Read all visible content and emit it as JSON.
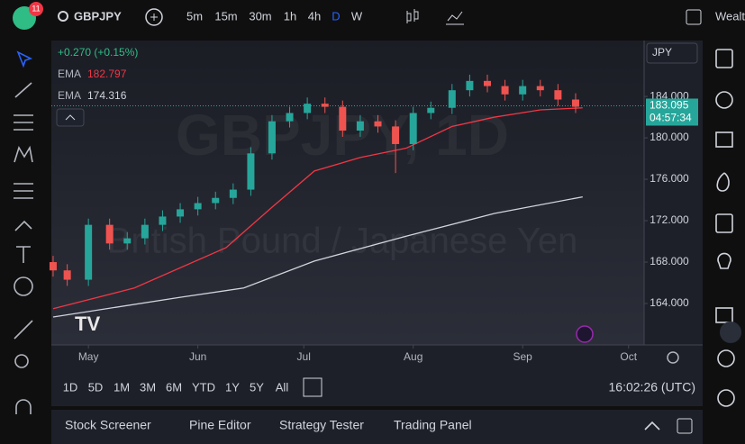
{
  "toolbar": {
    "badge": "11",
    "symbol": "GBPJPY",
    "intervals": [
      "5m",
      "15m",
      "30m",
      "1h",
      "4h",
      "D",
      "W"
    ],
    "account": "Wealt"
  },
  "legend": {
    "change": "+0.270 (+0.15%)",
    "ema_label_1": "EMA",
    "ema_value_1": "182.797",
    "ema_label_2": "EMA",
    "ema_value_2": "174.316"
  },
  "currency": "JPY",
  "watermark": {
    "symbol": "GBPJPY, 1D",
    "name": "British Pound / Japanese Yen"
  },
  "chart_data": {
    "type": "candlestick",
    "x": [
      -10,
      -6,
      0,
      6,
      11,
      16,
      21,
      26,
      31,
      36,
      41,
      46,
      52,
      57,
      62,
      67,
      72,
      77,
      82,
      87,
      92,
      97,
      103,
      108,
      113,
      118,
      123,
      128,
      133,
      138
    ],
    "open": [
      168.0,
      167.2,
      166.3,
      171.6,
      169.8,
      170.3,
      171.6,
      172.4,
      173.1,
      173.7,
      174.2,
      175.0,
      178.5,
      181.6,
      182.4,
      183.3,
      183.0,
      180.7,
      181.6,
      181.1,
      179.4,
      182.4,
      182.9,
      184.6,
      185.5,
      185.0,
      184.2,
      185.0,
      184.6,
      183.7
    ],
    "high": [
      168.6,
      167.8,
      172.2,
      172.2,
      170.9,
      172.2,
      173.0,
      173.7,
      174.3,
      174.8,
      175.6,
      179.1,
      182.2,
      183.0,
      183.9,
      183.9,
      183.6,
      182.2,
      182.2,
      181.7,
      183.0,
      183.5,
      185.2,
      186.1,
      186.1,
      185.6,
      185.6,
      185.6,
      185.2,
      184.3
    ],
    "low": [
      166.6,
      165.7,
      165.7,
      169.2,
      169.2,
      169.7,
      171.0,
      171.8,
      172.5,
      173.1,
      173.6,
      174.4,
      177.9,
      181.0,
      181.8,
      182.4,
      180.1,
      180.1,
      180.5,
      176.6,
      178.8,
      181.8,
      182.3,
      184.0,
      184.4,
      183.6,
      183.6,
      184.0,
      183.1,
      182.4
    ],
    "close": [
      167.2,
      166.3,
      171.6,
      169.8,
      170.3,
      171.6,
      172.4,
      173.1,
      173.7,
      174.2,
      175.0,
      178.5,
      181.6,
      182.4,
      183.3,
      183.0,
      180.7,
      181.6,
      181.1,
      179.4,
      182.4,
      182.9,
      184.6,
      185.5,
      185.0,
      184.2,
      185.0,
      184.6,
      183.7,
      183.0
    ],
    "up_color": "#26a69a",
    "down_color": "#ef5350",
    "lines": [
      {
        "color": "#f23645",
        "x": [
          -10,
          13,
          39,
          52,
          64,
          77,
          90,
          103,
          115,
          128,
          140
        ],
        "values": [
          163.5,
          165.5,
          169.4,
          173.3,
          176.8,
          178.1,
          179.0,
          181.1,
          182.0,
          182.7,
          182.9
        ]
      },
      {
        "color": "#d1d4dc",
        "x": [
          -10,
          26,
          44,
          64,
          90,
          115,
          140
        ],
        "values": [
          162.7,
          164.6,
          165.5,
          168.1,
          170.5,
          172.7,
          174.3
        ]
      }
    ],
    "last_price": 183.095,
    "countdown": "04:57:34",
    "xlim": [
      -10.5,
      157.4
    ],
    "xticks": [
      {
        "value": 0,
        "label": "May"
      },
      {
        "value": 31,
        "label": "Jun"
      },
      {
        "value": 61,
        "label": "Jul"
      },
      {
        "value": 92,
        "label": "Aug"
      },
      {
        "value": 123,
        "label": "Sep"
      },
      {
        "value": 153,
        "label": "Oct"
      }
    ],
    "ylim": [
      160,
      189.4
    ],
    "yticks": [
      {
        "value": 164,
        "label": "164.000"
      },
      {
        "value": 168,
        "label": "168.000"
      },
      {
        "value": 172,
        "label": "172.000"
      },
      {
        "value": 176,
        "label": "176.000"
      },
      {
        "value": 180,
        "label": "180.000"
      },
      {
        "value": 184,
        "label": "184.000"
      }
    ]
  },
  "ranges": [
    "1D",
    "5D",
    "1M",
    "3M",
    "6M",
    "YTD",
    "1Y",
    "5Y",
    "All"
  ],
  "clock": "16:02:26 (UTC)",
  "tabs": [
    "Stock Screener",
    "Pine Editor",
    "Strategy Tester",
    "Trading Panel"
  ]
}
